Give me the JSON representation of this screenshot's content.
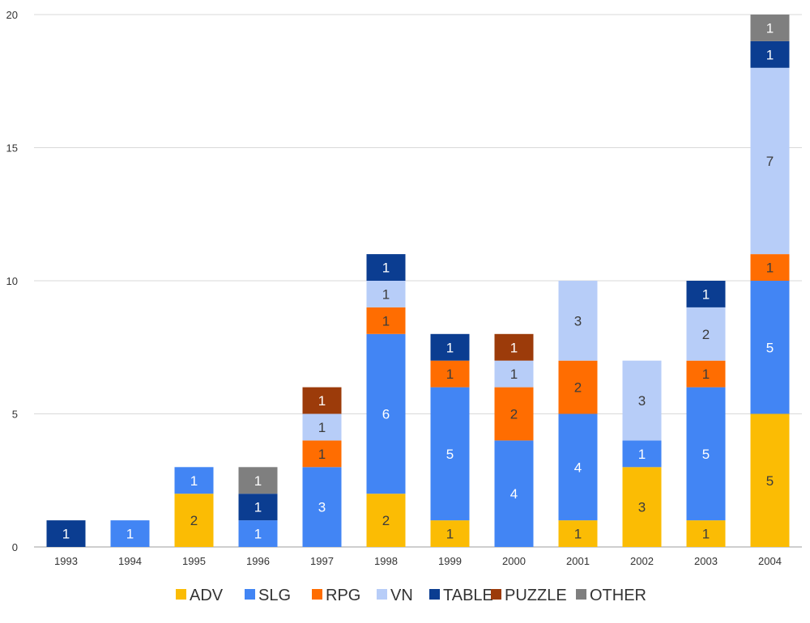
{
  "chart_data": {
    "type": "bar",
    "stacked": true,
    "title": "",
    "xlabel": "",
    "ylabel": "",
    "ylim": [
      0,
      20
    ],
    "yticks": [
      0,
      5,
      10,
      15,
      20
    ],
    "grid": true,
    "legend_position": "bottom",
    "categories": [
      "1993",
      "1994",
      "1995",
      "1996",
      "1997",
      "1998",
      "1999",
      "2000",
      "2001",
      "2002",
      "2003",
      "2004"
    ],
    "series": [
      {
        "name": "ADV",
        "color": "#FBBC04",
        "label_color": "#3c3c3c",
        "values": [
          0,
          0,
          2,
          0,
          0,
          2,
          1,
          0,
          1,
          3,
          1,
          5
        ]
      },
      {
        "name": "SLG",
        "color": "#4285F4",
        "label_color": "#ffffff",
        "values": [
          0,
          1,
          1,
          1,
          3,
          6,
          5,
          4,
          4,
          1,
          5,
          5
        ]
      },
      {
        "name": "RPG",
        "color": "#FF6D01",
        "label_color": "#3c3c3c",
        "values": [
          0,
          0,
          0,
          0,
          1,
          1,
          1,
          2,
          2,
          0,
          1,
          1
        ]
      },
      {
        "name": "VN",
        "color": "#B7CDF8",
        "label_color": "#3c3c3c",
        "values": [
          0,
          0,
          0,
          0,
          1,
          1,
          0,
          1,
          3,
          3,
          2,
          7
        ]
      },
      {
        "name": "TABLE",
        "color": "#0B3D91",
        "label_color": "#ffffff",
        "values": [
          1,
          0,
          0,
          1,
          0,
          1,
          1,
          0,
          0,
          0,
          1,
          1
        ]
      },
      {
        "name": "PUZZLE",
        "color": "#9C3B0A",
        "label_color": "#ffffff",
        "values": [
          0,
          0,
          0,
          0,
          1,
          0,
          0,
          1,
          0,
          0,
          0,
          0
        ]
      },
      {
        "name": "OTHER",
        "color": "#7F7F7F",
        "label_color": "#ffffff",
        "values": [
          0,
          0,
          0,
          1,
          0,
          0,
          0,
          0,
          0,
          0,
          0,
          1
        ]
      }
    ]
  }
}
